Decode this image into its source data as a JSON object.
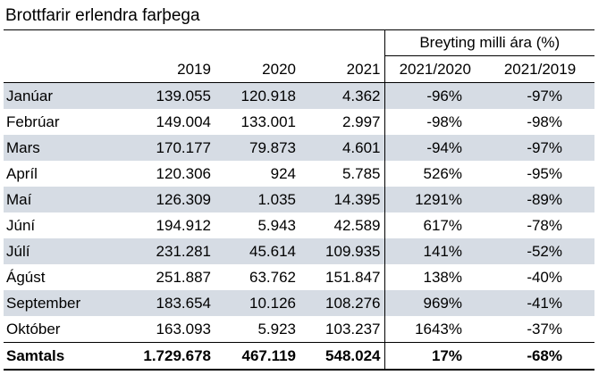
{
  "title": "Brottfarir erlendra farþega",
  "group_header": "Breyting milli ára (%)",
  "columns": [
    "",
    "2019",
    "2020",
    "2021",
    "2021/2020",
    "2021/2019"
  ],
  "rows": [
    {
      "month": "Janúar",
      "y2019": "139.055",
      "y2020": "120.918",
      "y2021": "4.362",
      "ch2120": "-96%",
      "ch2119": "-97%"
    },
    {
      "month": "Febrúar",
      "y2019": "149.004",
      "y2020": "133.001",
      "y2021": "2.997",
      "ch2120": "-98%",
      "ch2119": "-98%"
    },
    {
      "month": "Mars",
      "y2019": "170.177",
      "y2020": "79.873",
      "y2021": "4.601",
      "ch2120": "-94%",
      "ch2119": "-97%"
    },
    {
      "month": "Apríl",
      "y2019": "120.306",
      "y2020": "924",
      "y2021": "5.785",
      "ch2120": "526%",
      "ch2119": "-95%"
    },
    {
      "month": "Maí",
      "y2019": "126.309",
      "y2020": "1.035",
      "y2021": "14.395",
      "ch2120": "1291%",
      "ch2119": "-89%"
    },
    {
      "month": "Júní",
      "y2019": "194.912",
      "y2020": "5.943",
      "y2021": "42.589",
      "ch2120": "617%",
      "ch2119": "-78%"
    },
    {
      "month": "Júlí",
      "y2019": "231.281",
      "y2020": "45.614",
      "y2021": "109.935",
      "ch2120": "141%",
      "ch2119": "-52%"
    },
    {
      "month": "Ágúst",
      "y2019": "251.887",
      "y2020": "63.762",
      "y2021": "151.847",
      "ch2120": "138%",
      "ch2119": "-40%"
    },
    {
      "month": "September",
      "y2019": "183.654",
      "y2020": "10.126",
      "y2021": "108.276",
      "ch2120": "969%",
      "ch2119": "-41%"
    },
    {
      "month": "Október",
      "y2019": "163.093",
      "y2020": "5.923",
      "y2021": "103.237",
      "ch2120": "1643%",
      "ch2119": "-37%"
    }
  ],
  "total": {
    "label": "Samtals",
    "y2019": "1.729.678",
    "y2020": "467.119",
    "y2021": "548.024",
    "ch2120": "17%",
    "ch2119": "-68%"
  },
  "colors": {
    "row_shade": "#d6dce4"
  }
}
